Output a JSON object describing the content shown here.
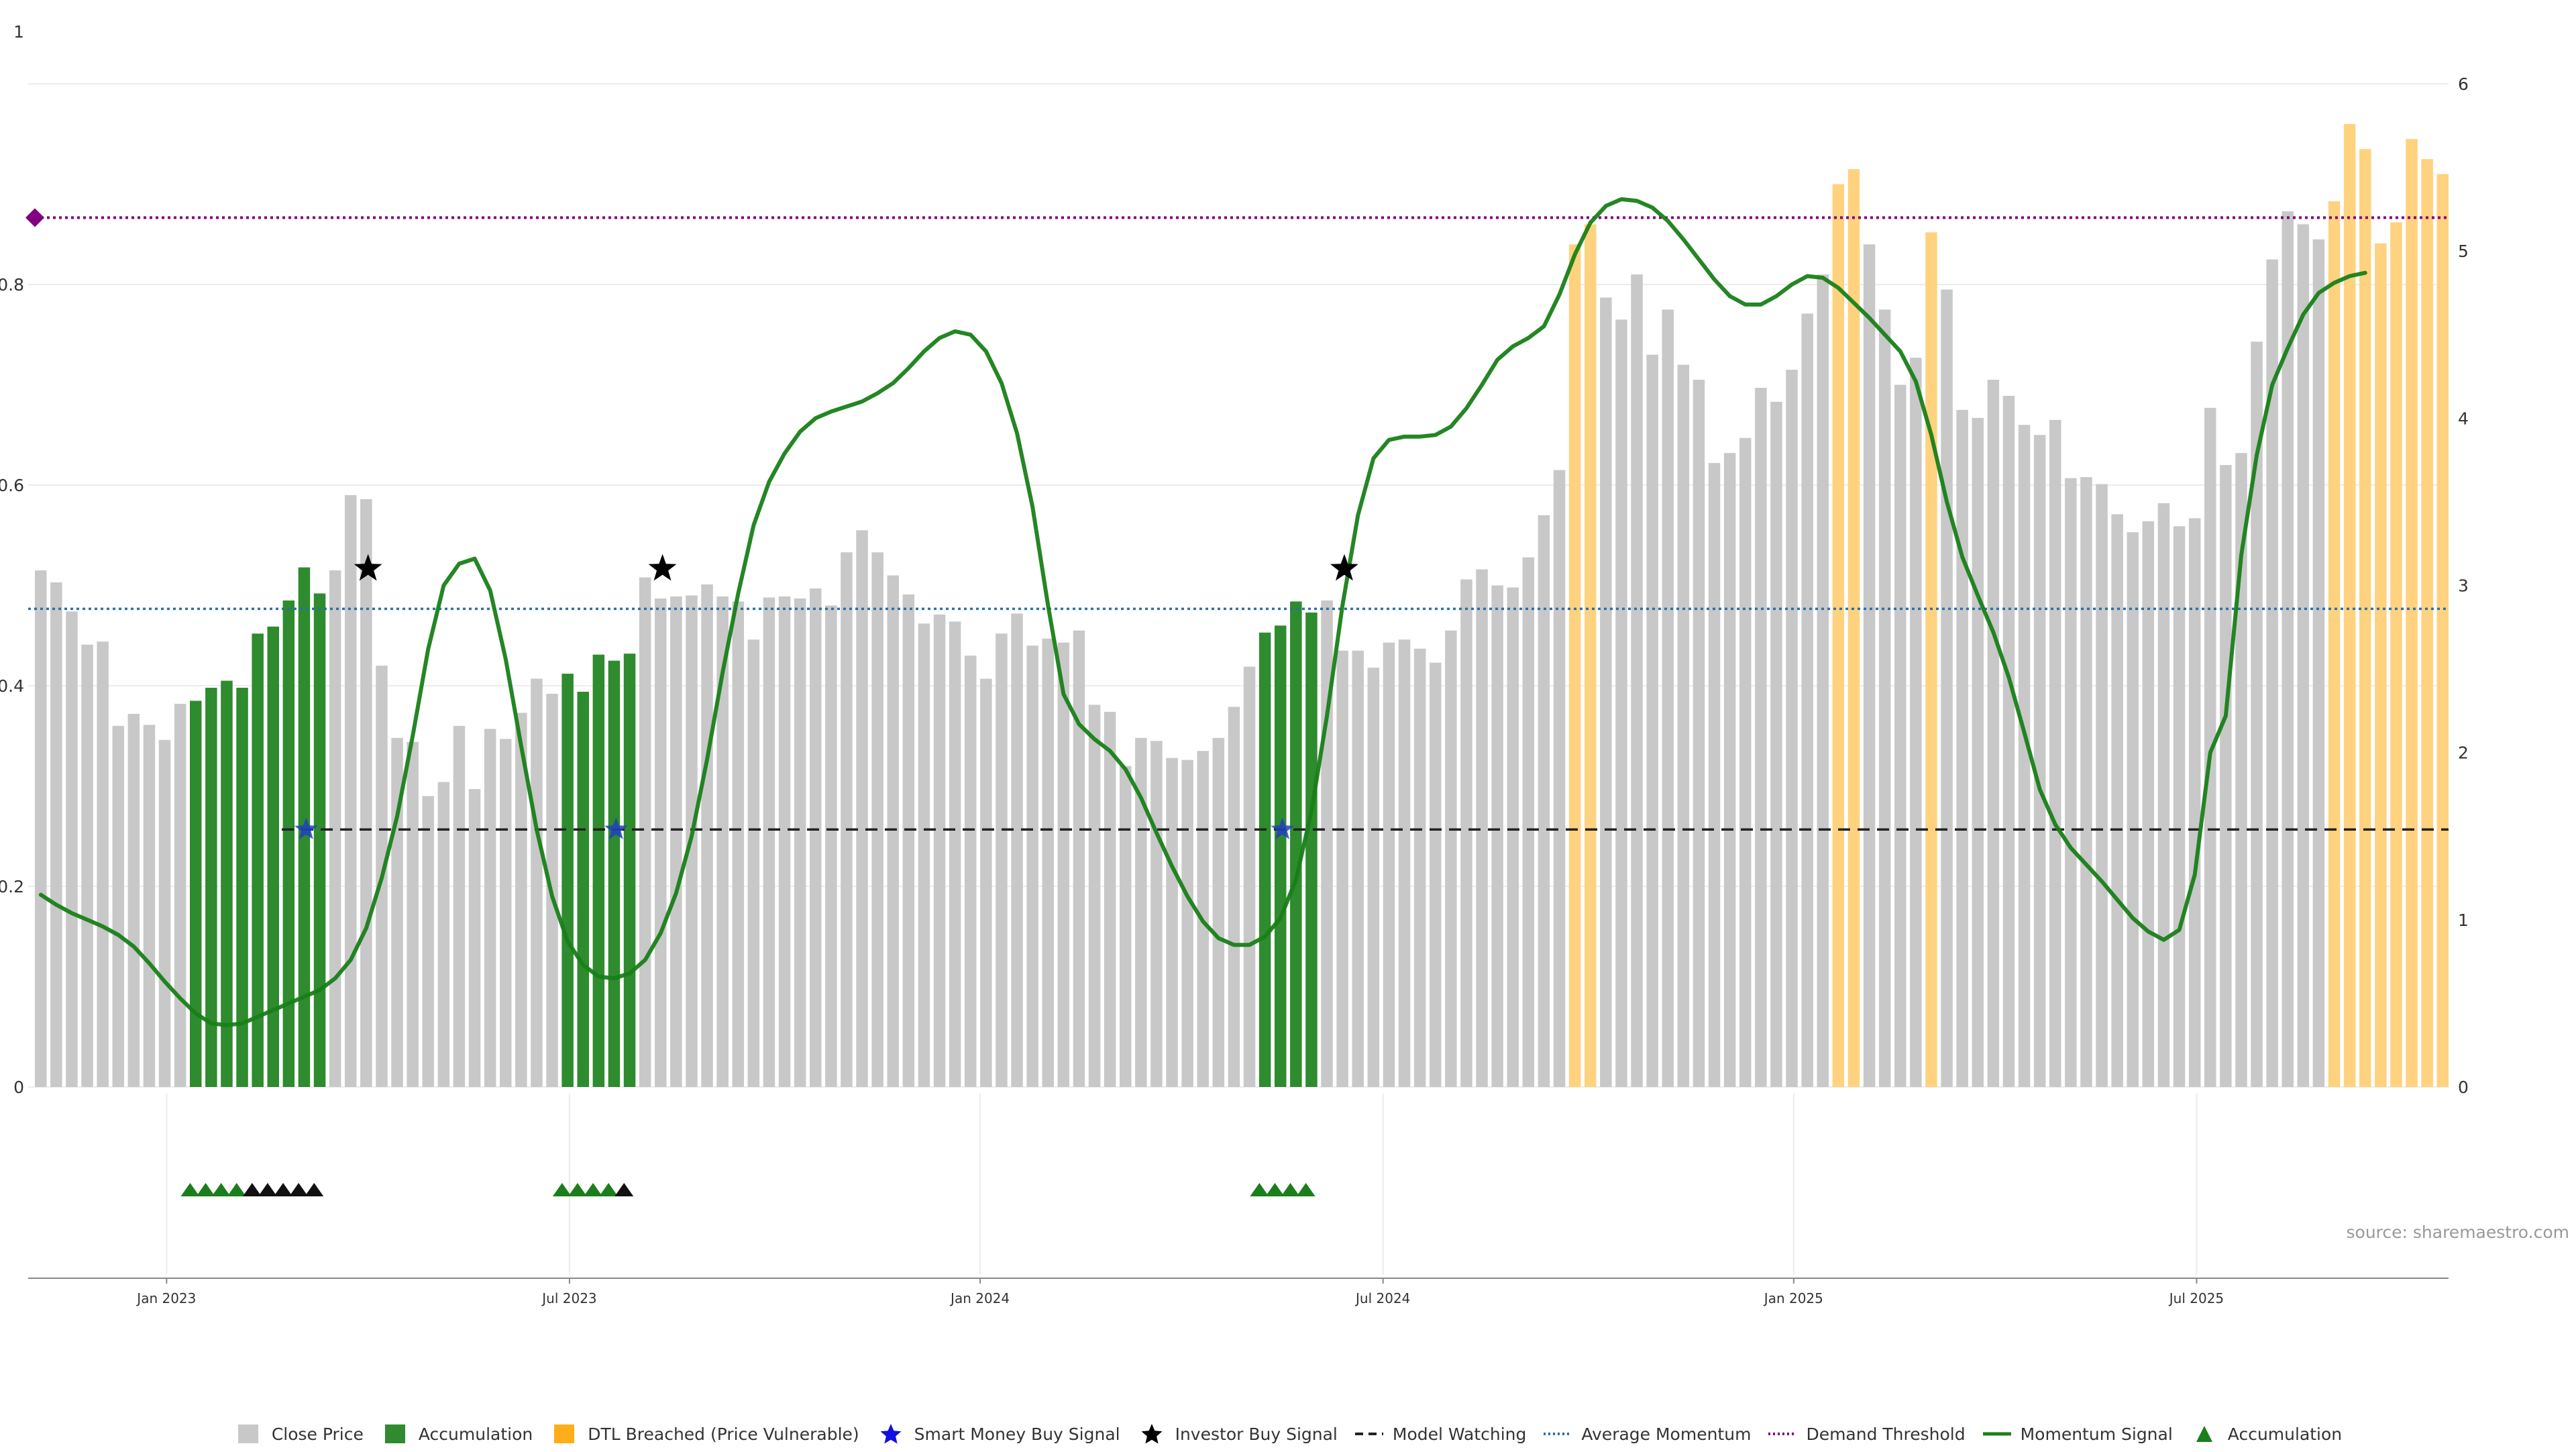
{
  "source_label": "source: sharemaestro.com",
  "chart_data": {
    "type": "bar",
    "left_axis": {
      "ticks": [
        0,
        0.2,
        0.4,
        0.6,
        0.8,
        1
      ],
      "tick_labels": [
        "0",
        "0.2",
        "0.4",
        "0.6",
        "0.8",
        "1"
      ],
      "ylim": [
        0,
        1
      ]
    },
    "right_axis": {
      "ticks": [
        0,
        1,
        2,
        3,
        4,
        5,
        6
      ],
      "tick_labels": [
        "0",
        "1",
        "2",
        "3",
        "4",
        "5",
        "6"
      ],
      "ylim": [
        0,
        6
      ]
    },
    "x_ticks": [
      {
        "label": "Jan 2023",
        "index": 8.5
      },
      {
        "label": "Jul 2023",
        "index": 34.5
      },
      {
        "label": "Jan 2024",
        "index": 61
      },
      {
        "label": "Jul 2024",
        "index": 87
      },
      {
        "label": "Jan 2025",
        "index": 113.5
      },
      {
        "label": "Jul 2025",
        "index": 139.5
      }
    ],
    "bar_values": [
      0.515,
      0.503,
      0.474,
      0.441,
      0.444,
      0.36,
      0.372,
      0.361,
      0.346,
      0.382,
      0.385,
      0.398,
      0.405,
      0.398,
      0.452,
      0.459,
      0.485,
      0.518,
      0.492,
      0.515,
      0.59,
      0.586,
      0.42,
      0.348,
      0.344,
      0.29,
      0.304,
      0.36,
      0.297,
      0.357,
      0.347,
      0.373,
      0.407,
      0.392,
      0.412,
      0.394,
      0.431,
      0.425,
      0.432,
      0.508,
      0.487,
      0.489,
      0.49,
      0.501,
      0.489,
      0.484,
      0.446,
      0.488,
      0.489,
      0.487,
      0.497,
      0.48,
      0.533,
      0.555,
      0.533,
      0.51,
      0.491,
      0.462,
      0.471,
      0.464,
      0.43,
      0.407,
      0.452,
      0.472,
      0.44,
      0.447,
      0.443,
      0.455,
      0.381,
      0.374,
      0.32,
      0.348,
      0.345,
      0.328,
      0.326,
      0.335,
      0.348,
      0.379,
      0.419,
      0.453,
      0.46,
      0.484,
      0.473,
      0.485,
      0.435,
      0.435,
      0.418,
      0.443,
      0.446,
      0.437,
      0.423,
      0.455,
      0.506,
      0.516,
      0.5,
      0.498,
      0.528,
      0.57,
      0.615,
      0.84,
      0.86,
      0.787,
      0.765,
      0.81,
      0.73,
      0.775,
      0.72,
      0.705,
      0.622,
      0.632,
      0.647,
      0.697,
      0.683,
      0.715,
      0.771,
      0.81,
      0.9,
      0.915,
      0.84,
      0.775,
      0.7,
      0.727,
      0.852,
      0.795,
      0.675,
      0.667,
      0.705,
      0.689,
      0.66,
      0.65,
      0.665,
      0.607,
      0.608,
      0.601,
      0.571,
      0.553,
      0.564,
      0.582,
      0.559,
      0.567,
      0.677,
      0.62,
      0.632,
      0.743,
      0.825,
      0.873,
      0.86,
      0.845,
      0.883,
      0.96,
      0.935,
      0.841,
      0.862,
      0.945,
      0.925,
      0.91
    ],
    "bar_categories": {
      "accumulation": [
        [
          10,
          18
        ],
        [
          34,
          38
        ],
        [
          79,
          82
        ]
      ],
      "dtl_breached": [
        [
          99,
          100
        ],
        [
          116,
          117
        ],
        [
          122,
          122
        ],
        [
          148,
          156
        ]
      ]
    },
    "momentum_signal": [
      [
        0,
        1.15
      ],
      [
        1,
        1.09
      ],
      [
        2,
        1.04
      ],
      [
        3,
        1.0
      ],
      [
        4,
        0.96
      ],
      [
        5,
        0.91
      ],
      [
        6,
        0.84
      ],
      [
        7,
        0.74
      ],
      [
        8,
        0.63
      ],
      [
        9,
        0.53
      ],
      [
        10,
        0.44
      ],
      [
        11,
        0.38
      ],
      [
        12,
        0.37
      ],
      [
        13,
        0.38
      ],
      [
        14,
        0.42
      ],
      [
        15,
        0.46
      ],
      [
        16,
        0.5
      ],
      [
        17,
        0.54
      ],
      [
        18,
        0.58
      ],
      [
        19,
        0.65
      ],
      [
        20,
        0.76
      ],
      [
        21,
        0.95
      ],
      [
        22,
        1.25
      ],
      [
        23,
        1.62
      ],
      [
        24,
        2.1
      ],
      [
        25,
        2.62
      ],
      [
        26,
        3.0
      ],
      [
        27,
        3.13
      ],
      [
        28,
        3.16
      ],
      [
        29,
        2.97
      ],
      [
        30,
        2.56
      ],
      [
        31,
        2.04
      ],
      [
        32,
        1.54
      ],
      [
        33,
        1.14
      ],
      [
        34,
        0.87
      ],
      [
        35,
        0.73
      ],
      [
        36,
        0.66
      ],
      [
        37,
        0.65
      ],
      [
        38,
        0.68
      ],
      [
        39,
        0.76
      ],
      [
        40,
        0.92
      ],
      [
        41,
        1.16
      ],
      [
        42,
        1.5
      ],
      [
        43,
        1.96
      ],
      [
        44,
        2.48
      ],
      [
        45,
        2.95
      ],
      [
        46,
        3.36
      ],
      [
        47,
        3.62
      ],
      [
        48,
        3.79
      ],
      [
        49,
        3.92
      ],
      [
        50,
        4.0
      ],
      [
        51,
        4.04
      ],
      [
        52,
        4.07
      ],
      [
        53,
        4.1
      ],
      [
        54,
        4.15
      ],
      [
        55,
        4.21
      ],
      [
        56,
        4.3
      ],
      [
        57,
        4.4
      ],
      [
        58,
        4.48
      ],
      [
        59,
        4.52
      ],
      [
        60,
        4.5
      ],
      [
        61,
        4.4
      ],
      [
        62,
        4.21
      ],
      [
        63,
        3.91
      ],
      [
        64,
        3.47
      ],
      [
        65,
        2.88
      ],
      [
        66,
        2.35
      ],
      [
        67,
        2.17
      ],
      [
        68,
        2.08
      ],
      [
        69,
        2.01
      ],
      [
        70,
        1.9
      ],
      [
        71,
        1.73
      ],
      [
        72,
        1.52
      ],
      [
        73,
        1.32
      ],
      [
        74,
        1.14
      ],
      [
        75,
        0.99
      ],
      [
        76,
        0.89
      ],
      [
        77,
        0.85
      ],
      [
        78,
        0.85
      ],
      [
        79,
        0.9
      ],
      [
        80,
        1.01
      ],
      [
        81,
        1.24
      ],
      [
        82,
        1.65
      ],
      [
        83,
        2.22
      ],
      [
        84,
        2.88
      ],
      [
        85,
        3.42
      ],
      [
        86,
        3.76
      ],
      [
        87,
        3.87
      ],
      [
        88,
        3.89
      ],
      [
        89,
        3.89
      ],
      [
        90,
        3.9
      ],
      [
        91,
        3.95
      ],
      [
        92,
        4.06
      ],
      [
        93,
        4.2
      ],
      [
        94,
        4.35
      ],
      [
        95,
        4.43
      ],
      [
        96,
        4.48
      ],
      [
        97,
        4.55
      ],
      [
        98,
        4.74
      ],
      [
        99,
        4.98
      ],
      [
        100,
        5.17
      ],
      [
        101,
        5.27
      ],
      [
        102,
        5.31
      ],
      [
        103,
        5.3
      ],
      [
        104,
        5.26
      ],
      [
        105,
        5.18
      ],
      [
        106,
        5.07
      ],
      [
        107,
        4.95
      ],
      [
        108,
        4.83
      ],
      [
        109,
        4.73
      ],
      [
        110,
        4.68
      ],
      [
        111,
        4.68
      ],
      [
        112,
        4.73
      ],
      [
        113,
        4.8
      ],
      [
        114,
        4.85
      ],
      [
        115,
        4.84
      ],
      [
        116,
        4.78
      ],
      [
        117,
        4.69
      ],
      [
        118,
        4.6
      ],
      [
        119,
        4.5
      ],
      [
        120,
        4.4
      ],
      [
        121,
        4.22
      ],
      [
        122,
        3.9
      ],
      [
        123,
        3.5
      ],
      [
        124,
        3.17
      ],
      [
        125,
        2.94
      ],
      [
        126,
        2.72
      ],
      [
        127,
        2.45
      ],
      [
        128,
        2.12
      ],
      [
        129,
        1.78
      ],
      [
        130,
        1.57
      ],
      [
        131,
        1.43
      ],
      [
        132,
        1.33
      ],
      [
        133,
        1.23
      ],
      [
        134,
        1.12
      ],
      [
        135,
        1.01
      ],
      [
        136,
        0.93
      ],
      [
        137,
        0.88
      ],
      [
        138,
        0.94
      ],
      [
        139,
        1.27
      ],
      [
        140,
        2.0
      ],
      [
        141,
        2.22
      ],
      [
        142,
        3.18
      ],
      [
        143,
        3.78
      ],
      [
        144,
        4.2
      ],
      [
        145,
        4.42
      ],
      [
        146,
        4.62
      ],
      [
        147,
        4.75
      ],
      [
        148,
        4.81
      ],
      [
        149,
        4.85
      ],
      [
        150,
        4.87
      ]
    ],
    "average_momentum": 2.86,
    "model_watching": 1.54,
    "demand_threshold": 5.2,
    "smart_money_buy_signals": [
      [
        17.5,
        1.54
      ],
      [
        37.5,
        1.54
      ],
      [
        80.5,
        1.54
      ]
    ],
    "investor_buy_signals": [
      [
        21.5,
        3.1
      ],
      [
        40.5,
        3.1
      ],
      [
        84.5,
        3.1
      ]
    ],
    "accumulation_markers": [
      {
        "index": 9.5,
        "color": "#1a7f1a"
      },
      {
        "index": 10.5,
        "color": "#1a7f1a"
      },
      {
        "index": 11.5,
        "color": "#1a7f1a"
      },
      {
        "index": 12.5,
        "color": "#1a7f1a"
      },
      {
        "index": 13.5,
        "color": "#111111"
      },
      {
        "index": 14.5,
        "color": "#111111"
      },
      {
        "index": 15.5,
        "color": "#111111"
      },
      {
        "index": 16.5,
        "color": "#111111"
      },
      {
        "index": 17.5,
        "color": "#111111"
      },
      {
        "index": 33.5,
        "color": "#1a7f1a"
      },
      {
        "index": 34.5,
        "color": "#1a7f1a"
      },
      {
        "index": 35.5,
        "color": "#1a7f1a"
      },
      {
        "index": 36.5,
        "color": "#1a7f1a"
      },
      {
        "index": 37.5,
        "color": "#111111"
      },
      {
        "index": 78.5,
        "color": "#1a7f1a"
      },
      {
        "index": 79.5,
        "color": "#1a7f1a"
      },
      {
        "index": 80.5,
        "color": "#1a7f1a"
      },
      {
        "index": 81.5,
        "color": "#1a7f1a"
      }
    ],
    "demand_threshold_marker": true,
    "grid": true,
    "legend_position": "bottom",
    "colors": {
      "close_price": "#c8c8c8",
      "accumulation": "#2e8b2e",
      "dtl_breached": "#ffd27f",
      "momentum": "#188018",
      "average_momentum": "#2a6fa8",
      "demand_threshold": "#800080",
      "model_watching": "#222222",
      "smart_money": "#1f3fbf",
      "investor": "#000000"
    }
  },
  "legend": [
    {
      "label": "Close Price",
      "icon": "square-swatch"
    },
    {
      "label": "Accumulation",
      "icon": "square-swatch"
    },
    {
      "label": "DTL Breached (Price Vulnerable)",
      "icon": "square-swatch"
    },
    {
      "label": "Smart Money Buy Signal",
      "icon": "star-icon"
    },
    {
      "label": "Investor Buy Signal",
      "icon": "star-icon"
    },
    {
      "label": "Model Watching",
      "icon": "dashed-line"
    },
    {
      "label": "Average Momentum",
      "icon": "dotted-line"
    },
    {
      "label": "Demand Threshold",
      "icon": "dotted-line"
    },
    {
      "label": "Momentum Signal",
      "icon": "solid-line"
    },
    {
      "label": "Accumulation",
      "icon": "triangle-icon"
    }
  ]
}
